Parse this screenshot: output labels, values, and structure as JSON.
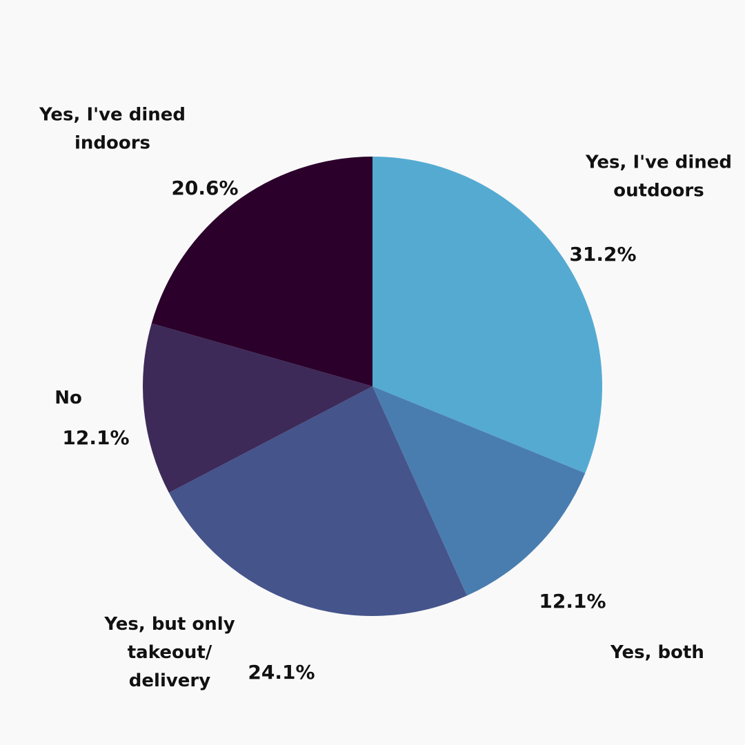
{
  "chart_data": {
    "type": "pie",
    "start_angle_deg": 0,
    "direction": "clockwise",
    "slices": [
      {
        "label": "Yes, I've dined outdoors",
        "label_lines": [
          "Yes, I've dined",
          "outdoors"
        ],
        "value": 31.2,
        "value_label": "31.2%",
        "color": "#55aad2"
      },
      {
        "label": "Yes, both",
        "label_lines": [
          "Yes, both"
        ],
        "value": 12.1,
        "value_label": "12.1%",
        "color": "#4a7daf"
      },
      {
        "label": "Yes, but only takeout/ delivery",
        "label_lines": [
          "Yes, but only",
          "takeout/",
          "delivery"
        ],
        "value": 24.1,
        "value_label": "24.1%",
        "color": "#45548b"
      },
      {
        "label": "No",
        "label_lines": [
          "No"
        ],
        "value": 12.1,
        "value_label": "12.1%",
        "color": "#3d2a59"
      },
      {
        "label": "Yes, I've dined indoors",
        "label_lines": [
          "Yes, I've dined",
          "indoors"
        ],
        "value": 20.6,
        "value_label": "20.6%",
        "color": "#2b002b"
      }
    ]
  }
}
